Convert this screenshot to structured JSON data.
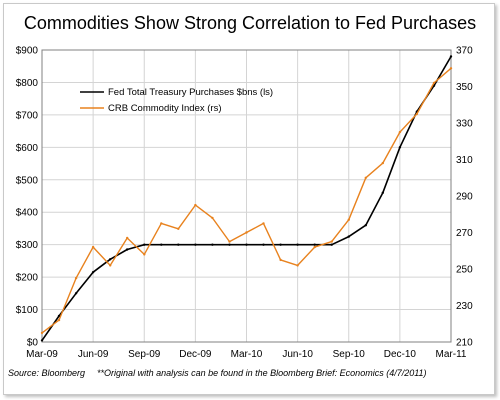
{
  "title": "Commodities Show Strong Correlation to Fed Purchases",
  "source_label": "Source:  Bloomberg",
  "source_note": "**Original with analysis can be found in the Bloomberg Brief: Economics (4/7/2011)",
  "colors": {
    "treasury": "#000000",
    "crb": "#e8821e",
    "grid": "#d4d4d4"
  },
  "chart_data": {
    "type": "line",
    "title": "Commodities Show Strong Correlation to Fed Purchases",
    "x_ticks": [
      "Mar-09",
      "Jun-09",
      "Sep-09",
      "Dec-09",
      "Mar-10",
      "Jun-10",
      "Sep-10",
      "Dec-10",
      "Mar-11"
    ],
    "xlim": [
      "2009-03",
      "2011-03"
    ],
    "y_left": {
      "ylim": [
        0,
        900
      ],
      "ticks": [
        "$0",
        "$100",
        "$200",
        "$300",
        "$400",
        "$500",
        "$600",
        "$700",
        "$800",
        "$900"
      ]
    },
    "y_right": {
      "ylim": [
        210,
        370
      ],
      "ticks": [
        "210",
        "230",
        "250",
        "270",
        "290",
        "310",
        "330",
        "350",
        "370"
      ]
    },
    "legend_position": "upper-left",
    "grid": true,
    "series": [
      {
        "name": "Fed Total Treasury Purchases $bns (ls)",
        "axis": "left",
        "x": [
          "2009-03",
          "2009-04",
          "2009-05",
          "2009-06",
          "2009-07",
          "2009-08",
          "2009-09",
          "2009-10",
          "2009-11",
          "2009-12",
          "2010-01",
          "2010-02",
          "2010-03",
          "2010-04",
          "2010-05",
          "2010-06",
          "2010-07",
          "2010-08",
          "2010-09",
          "2010-10",
          "2010-11",
          "2010-12",
          "2011-01",
          "2011-02",
          "2011-03"
        ],
        "values": [
          5,
          80,
          150,
          215,
          255,
          285,
          300,
          300,
          300,
          300,
          300,
          300,
          300,
          300,
          300,
          300,
          300,
          300,
          325,
          360,
          460,
          600,
          710,
          790,
          880
        ]
      },
      {
        "name": "CRB Commodity Index (rs)",
        "axis": "right",
        "x": [
          "2009-03",
          "2009-04",
          "2009-05",
          "2009-06",
          "2009-07",
          "2009-08",
          "2009-09",
          "2009-10",
          "2009-11",
          "2009-12",
          "2010-01",
          "2010-02",
          "2010-03",
          "2010-04",
          "2010-05",
          "2010-06",
          "2010-07",
          "2010-08",
          "2010-09",
          "2010-10",
          "2010-11",
          "2010-12",
          "2011-01",
          "2011-02",
          "2011-03"
        ],
        "values": [
          215,
          222,
          245,
          262,
          252,
          267,
          258,
          275,
          272,
          285,
          278,
          265,
          270,
          275,
          255,
          252,
          262,
          265,
          277,
          300,
          308,
          325,
          335,
          352,
          360
        ]
      }
    ]
  }
}
